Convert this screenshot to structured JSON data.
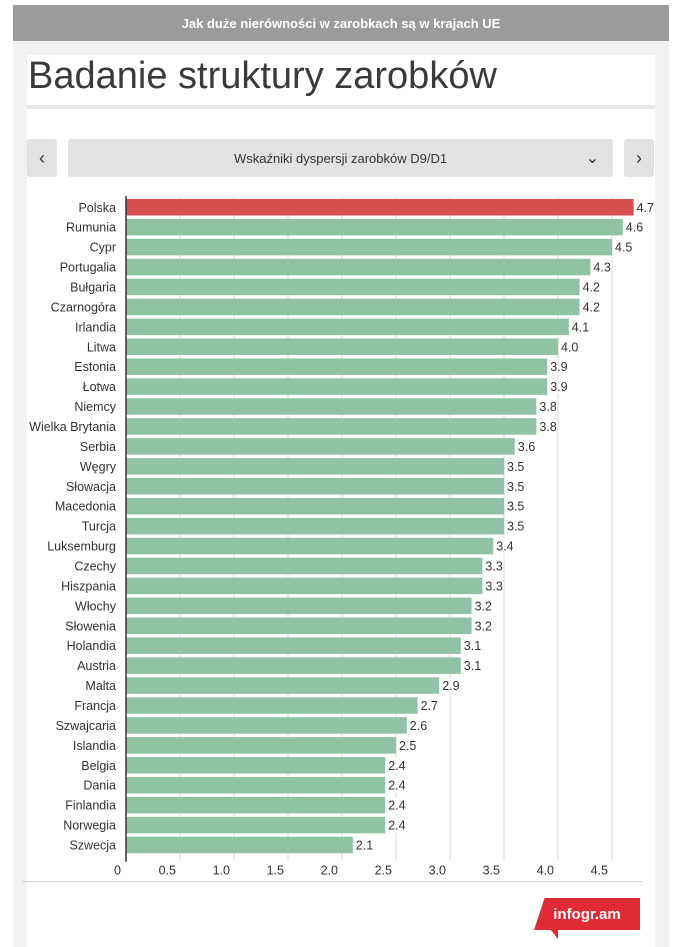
{
  "header": {
    "text": "Jak duże nierówności w zarobkach są w krajach UE"
  },
  "title": "Badanie struktury zarobków",
  "selector": {
    "label": "Wskaźniki dyspersji zarobków D9/D1",
    "prev_icon": "chevron-left-icon",
    "next_icon": "chevron-right-icon",
    "dropdown_icon": "chevron-down-icon"
  },
  "branding": {
    "label": "infogr.am"
  },
  "colors": {
    "highlight": "#d64f4f",
    "bar": "#8fc3a4",
    "grid": "#d9d9d9",
    "brand": "#e02b36"
  },
  "chart_data": {
    "type": "bar",
    "orientation": "horizontal",
    "categories": [
      "Polska",
      "Rumunia",
      "Cypr",
      "Portugalia",
      "Bułgaria",
      "Czarnogóra",
      "Irlandia",
      "Litwa",
      "Estonia",
      "Łotwa",
      "Niemcy",
      "Wielka Brytania",
      "Serbia",
      "Węgry",
      "Słowacja",
      "Macedonia",
      "Turcja",
      "Luksemburg",
      "Czechy",
      "Hiszpania",
      "Włochy",
      "Słowenia",
      "Holandia",
      "Austria",
      "Malta",
      "Francja",
      "Szwajcaria",
      "Islandia",
      "Belgia",
      "Dania",
      "Finlandia",
      "Norwegia",
      "Szwecja"
    ],
    "values": [
      4.7,
      4.6,
      4.5,
      4.3,
      4.2,
      4.2,
      4.1,
      4.0,
      3.9,
      3.9,
      3.8,
      3.8,
      3.6,
      3.5,
      3.5,
      3.5,
      3.5,
      3.4,
      3.3,
      3.3,
      3.2,
      3.2,
      3.1,
      3.1,
      2.9,
      2.7,
      2.6,
      2.5,
      2.4,
      2.4,
      2.4,
      2.4,
      2.1
    ],
    "value_labels": [
      "4.7",
      "4.6",
      "4.5",
      "4.3",
      "4.2",
      "4.2",
      "4.1",
      "4.0",
      "3.9",
      "3.9",
      "3.8",
      "3.8",
      "3.6",
      "3.5",
      "3.5",
      "3.5",
      "3.5",
      "3.4",
      "3.3",
      "3.3",
      "3.2",
      "3.2",
      "3.1",
      "3.1",
      "2.9",
      "2.7",
      "2.6",
      "2.5",
      "2.4",
      "2.4",
      "2.4",
      "2.4",
      "2.1"
    ],
    "highlight_category": "Polska",
    "xticks": [
      "0",
      "0.5",
      "1.0",
      "1.5",
      "2.0",
      "2.5",
      "3.0",
      "3.5",
      "4.0",
      "4.5"
    ],
    "xlim": [
      0,
      4.7
    ],
    "grid": true
  }
}
